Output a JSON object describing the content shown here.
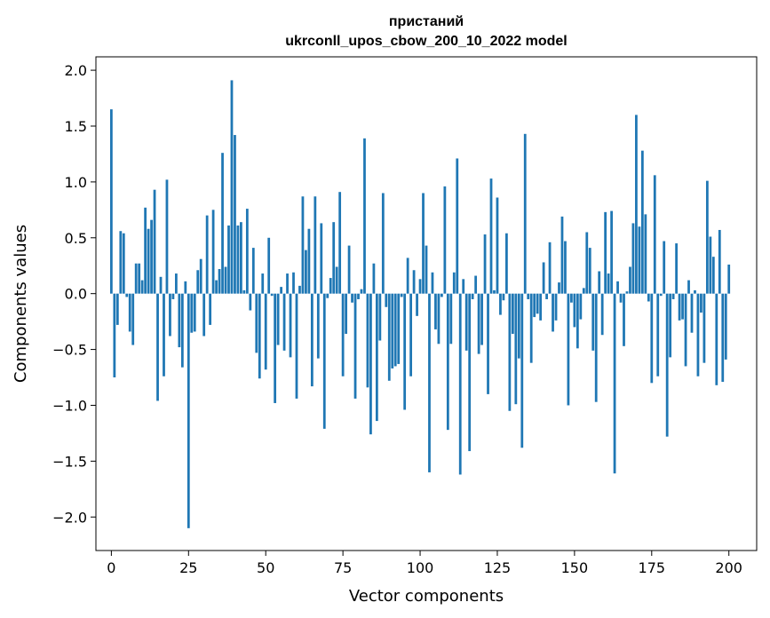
{
  "chart_data": {
    "type": "bar",
    "title_line1": "пристаний",
    "title_line2": "ukrconll_upos_cbow_200_10_2022 model",
    "xlabel": "Vector components",
    "ylabel": "Components values",
    "xlim": [
      -5,
      209
    ],
    "ylim": [
      -2.3,
      2.12
    ],
    "xticks": [
      0,
      25,
      50,
      75,
      100,
      125,
      150,
      175,
      200
    ],
    "xtick_labels": [
      "0",
      "25",
      "50",
      "75",
      "100",
      "125",
      "150",
      "175",
      "200"
    ],
    "yticks": [
      2.0,
      1.5,
      1.0,
      0.5,
      0.0,
      -0.5,
      -1.0,
      -1.5,
      -2.0
    ],
    "ytick_labels": [
      "2.0",
      "1.5",
      "1.0",
      "0.5",
      "0.0",
      "−0.5",
      "−1.0",
      "−1.5",
      "−2.0"
    ],
    "bar_color": "#1f77b4",
    "grid": false,
    "values": [
      1.65,
      -0.75,
      -0.28,
      0.56,
      0.54,
      -0.03,
      -0.34,
      -0.46,
      0.27,
      0.27,
      0.12,
      0.77,
      0.58,
      0.66,
      0.93,
      -0.96,
      0.15,
      -0.74,
      1.02,
      -0.38,
      -0.05,
      0.18,
      -0.48,
      -0.66,
      0.11,
      -2.1,
      -0.35,
      -0.34,
      0.21,
      0.31,
      -0.38,
      0.7,
      -0.28,
      0.75,
      0.12,
      0.22,
      1.26,
      0.24,
      0.61,
      1.91,
      1.42,
      0.61,
      0.64,
      0.03,
      0.76,
      -0.15,
      0.41,
      -0.53,
      -0.76,
      0.18,
      -0.68,
      0.5,
      -0.02,
      -0.98,
      -0.46,
      0.06,
      -0.51,
      0.18,
      -0.57,
      0.19,
      -0.94,
      0.07,
      0.87,
      0.39,
      0.58,
      -0.83,
      0.87,
      -0.58,
      0.63,
      -1.21,
      -0.04,
      0.14,
      0.64,
      0.24,
      0.91,
      -0.74,
      -0.36,
      0.43,
      -0.08,
      -0.94,
      -0.05,
      0.04,
      1.39,
      -0.84,
      -1.26,
      0.27,
      -1.14,
      -0.42,
      0.9,
      -0.12,
      -0.78,
      -0.67,
      -0.65,
      -0.63,
      -0.03,
      -1.04,
      0.32,
      -0.74,
      0.21,
      -0.2,
      0.13,
      0.9,
      0.43,
      -1.6,
      0.19,
      -0.32,
      -0.45,
      -0.03,
      0.96,
      -1.22,
      -0.45,
      0.19,
      1.21,
      -1.62,
      0.13,
      -0.51,
      -1.41,
      -0.05,
      0.16,
      -0.54,
      -0.46,
      0.53,
      -0.9,
      1.03,
      0.03,
      0.86,
      -0.19,
      -0.06,
      0.54,
      -1.05,
      -0.36,
      -0.99,
      -0.58,
      -1.38,
      1.43,
      -0.05,
      -0.62,
      -0.21,
      -0.18,
      -0.24,
      0.28,
      -0.05,
      0.46,
      -0.34,
      -0.24,
      0.1,
      0.69,
      0.47,
      -1.0,
      -0.08,
      -0.3,
      -0.49,
      -0.23,
      0.05,
      0.55,
      0.41,
      -0.51,
      -0.97,
      0.2,
      -0.37,
      0.73,
      0.18,
      0.74,
      -1.61,
      0.11,
      -0.08,
      -0.47,
      0.02,
      0.24,
      0.63,
      1.6,
      0.6,
      1.28,
      0.71,
      -0.07,
      -0.8,
      1.06,
      -0.74,
      -0.02,
      0.47,
      -1.28,
      -0.57,
      -0.05,
      0.45,
      -0.24,
      -0.23,
      -0.65,
      0.12,
      -0.35,
      0.03,
      -0.74,
      -0.17,
      -0.62,
      1.01,
      0.51,
      0.33,
      -0.82,
      0.57,
      -0.79,
      -0.59,
      0.26
    ]
  }
}
